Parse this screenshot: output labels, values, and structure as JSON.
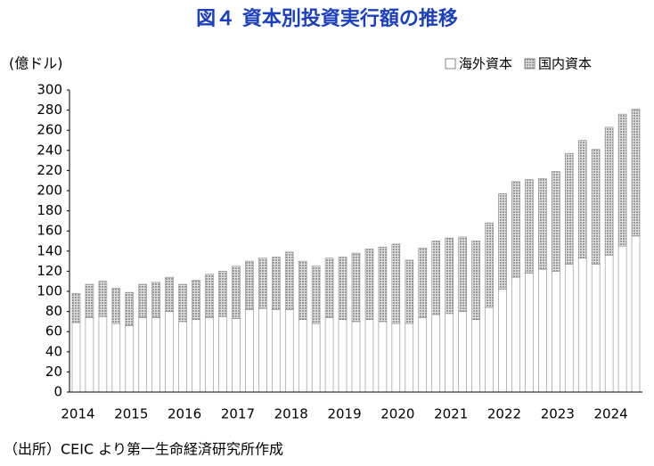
{
  "chart_data": {
    "type": "stacked_bar",
    "title": "図４ 資本別投資実行額の推移",
    "y_label": "(億ドル)",
    "source": "（出所）CEIC より第一生命経済研究所作成",
    "categories": [
      "2014",
      null,
      null,
      null,
      "2015",
      null,
      null,
      null,
      "2016",
      null,
      null,
      null,
      "2017",
      null,
      null,
      null,
      "2018",
      null,
      null,
      null,
      "2019",
      null,
      null,
      null,
      "2020",
      null,
      null,
      null,
      "2021",
      null,
      null,
      null,
      "2022",
      null,
      null,
      null,
      "2023",
      null,
      null,
      null,
      "2024",
      null,
      null
    ],
    "series": [
      {
        "name": "海外資本",
        "color": "#ffffff",
        "values": [
          69,
          74,
          75,
          68,
          66,
          74,
          74,
          80,
          70,
          72,
          74,
          75,
          73,
          82,
          83,
          82,
          82,
          72,
          68,
          74,
          72,
          70,
          72,
          70,
          68,
          68,
          74,
          77,
          78,
          80,
          72,
          84,
          102,
          114,
          118,
          122,
          120,
          127,
          133,
          127,
          136,
          145,
          155
        ]
      },
      {
        "name": "国内資本",
        "color": "#9a9a9a",
        "values": [
          29,
          33,
          35,
          35,
          33,
          33,
          35,
          34,
          37,
          39,
          43,
          45,
          52,
          48,
          50,
          52,
          57,
          58,
          57,
          59,
          62,
          68,
          70,
          74,
          79,
          63,
          69,
          73,
          75,
          74,
          78,
          84,
          95,
          95,
          93,
          90,
          99,
          110,
          117,
          114,
          127,
          131,
          126
        ]
      }
    ],
    "ylim": [
      0,
      300
    ],
    "yticks": [
      0,
      20,
      40,
      60,
      80,
      100,
      120,
      140,
      160,
      180,
      200,
      220,
      240,
      260,
      280,
      300
    ],
    "legend": "top-right"
  }
}
